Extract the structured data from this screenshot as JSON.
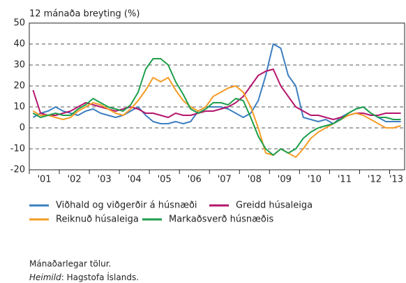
{
  "chart_data": {
    "type": "line",
    "ylabel": "12 mánaða breyting (%)",
    "categories": [
      "'01",
      null,
      null,
      null,
      "'02",
      null,
      null,
      null,
      "'03",
      null,
      null,
      null,
      "'04",
      null,
      null,
      null,
      "'05",
      null,
      null,
      null,
      "'06",
      null,
      null,
      null,
      "'07",
      null,
      null,
      null,
      "'08",
      null,
      null,
      null,
      "'09",
      null,
      null,
      null,
      "'10",
      null,
      null,
      null,
      "'11",
      null,
      null,
      null,
      "'12",
      null,
      null,
      null,
      "'13",
      null
    ],
    "ylim": [
      -20,
      50
    ],
    "yticks": [
      -20,
      -10,
      0,
      10,
      20,
      30,
      40,
      50
    ],
    "grid": true,
    "series": [
      {
        "name": "Viðhald og viðgerðir á húsnæði",
        "color": "#3d7fc1",
        "values": [
          5,
          7,
          8,
          10,
          8,
          7,
          6,
          8,
          9,
          7,
          6,
          5,
          6,
          8,
          10,
          6,
          3,
          2,
          2,
          3,
          2,
          3,
          8,
          10,
          10,
          10,
          9,
          7,
          5,
          7,
          13,
          25,
          40,
          38,
          25,
          20,
          5,
          4,
          3,
          4,
          2,
          5,
          7,
          9,
          10,
          7,
          5,
          3,
          3,
          3
        ]
      },
      {
        "name": "Greidd húsaleiga",
        "color": "#b5156c",
        "values": [
          18,
          7,
          6,
          6,
          7,
          8,
          10,
          12,
          11,
          10,
          9,
          8,
          9,
          10,
          9,
          7,
          7,
          6,
          5,
          7,
          6,
          6,
          7,
          8,
          8,
          9,
          10,
          12,
          15,
          20,
          25,
          27,
          28,
          20,
          15,
          10,
          8,
          6,
          6,
          5,
          4,
          5,
          6,
          7,
          7,
          6,
          6,
          7,
          7,
          7
        ]
      },
      {
        "name": "Reiknuð húsaleiga",
        "color": "#f59c25",
        "values": [
          8,
          6,
          6,
          5,
          4,
          5,
          8,
          10,
          12,
          11,
          9,
          7,
          6,
          9,
          13,
          18,
          24,
          22,
          24,
          18,
          13,
          10,
          8,
          10,
          15,
          17,
          19,
          20,
          17,
          10,
          0,
          -12,
          -13,
          -10,
          -12,
          -14,
          -10,
          -5,
          -2,
          0,
          2,
          4,
          6,
          7,
          6,
          4,
          2,
          0,
          0,
          1
        ]
      },
      {
        "name": "Markaðsverð húsnæðis",
        "color": "#1e9e4a",
        "values": [
          7,
          5,
          6,
          7,
          6,
          6,
          9,
          11,
          14,
          12,
          10,
          9,
          8,
          11,
          17,
          28,
          33,
          33,
          30,
          22,
          16,
          9,
          7,
          9,
          12,
          12,
          11,
          14,
          13,
          5,
          -4,
          -10,
          -13,
          -10,
          -12,
          -10,
          -5,
          -2,
          0,
          1,
          2,
          4,
          7,
          9,
          10,
          7,
          5,
          5,
          4,
          4
        ]
      }
    ]
  },
  "notes": {
    "frequency": "Mánaðarlegar tölur.",
    "source_label": "Heimild",
    "source_text": ": Hagstofa Íslands."
  }
}
